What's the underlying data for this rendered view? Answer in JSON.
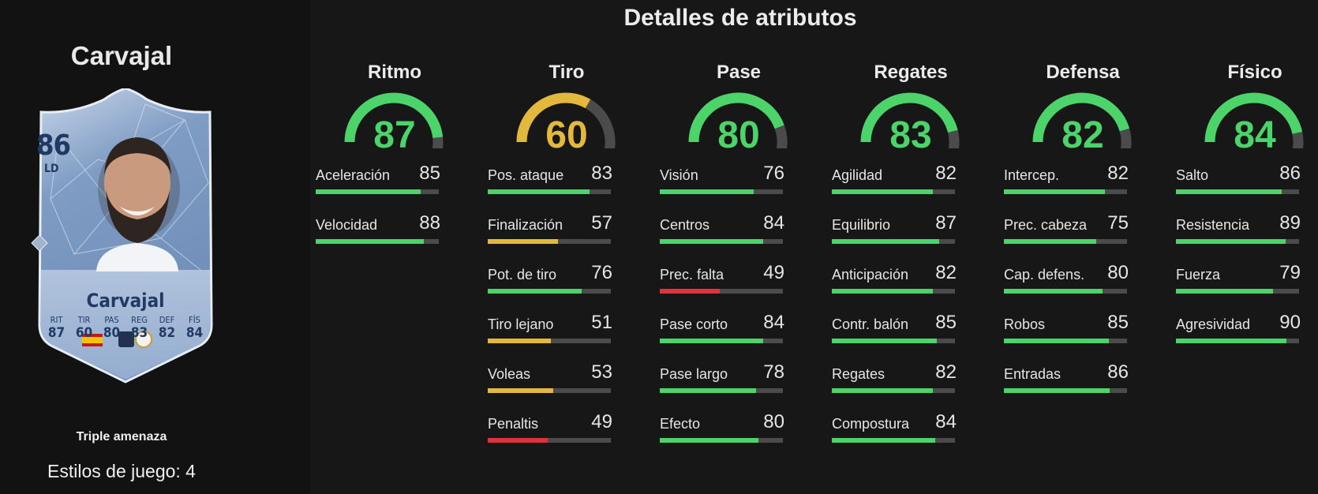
{
  "player": {
    "name": "Carvajal",
    "rating": "86",
    "position": "LD",
    "card_name": "Carvajal",
    "card_stats": [
      {
        "label": "RIT",
        "value": "87"
      },
      {
        "label": "TIR",
        "value": "60"
      },
      {
        "label": "PAS",
        "value": "80"
      },
      {
        "label": "REG",
        "value": "83"
      },
      {
        "label": "DEF",
        "value": "82"
      },
      {
        "label": "FÍS",
        "value": "84"
      }
    ],
    "playstyle": "Triple amenaza",
    "playstyles_count": "Estilos de juego: 4"
  },
  "section_title": "Detalles de atributos",
  "colors": {
    "green": "#4cd36a",
    "yellow": "#e2b93c",
    "red": "#e0313d",
    "track": "#4b4b4b"
  },
  "categories": [
    {
      "name": "Ritmo",
      "value": 87,
      "attributes": [
        {
          "name": "Aceleración",
          "value": 85
        },
        {
          "name": "Velocidad",
          "value": 88
        }
      ]
    },
    {
      "name": "Tiro",
      "value": 60,
      "attributes": [
        {
          "name": "Pos. ataque",
          "value": 83
        },
        {
          "name": "Finalización",
          "value": 57
        },
        {
          "name": "Pot. de tiro",
          "value": 76
        },
        {
          "name": "Tiro lejano",
          "value": 51
        },
        {
          "name": "Voleas",
          "value": 53
        },
        {
          "name": "Penaltis",
          "value": 49
        }
      ]
    },
    {
      "name": "Pase",
      "value": 80,
      "attributes": [
        {
          "name": "Visión",
          "value": 76
        },
        {
          "name": "Centros",
          "value": 84
        },
        {
          "name": "Prec. falta",
          "value": 49
        },
        {
          "name": "Pase corto",
          "value": 84
        },
        {
          "name": "Pase largo",
          "value": 78
        },
        {
          "name": "Efecto",
          "value": 80
        }
      ]
    },
    {
      "name": "Regates",
      "value": 83,
      "attributes": [
        {
          "name": "Agilidad",
          "value": 82
        },
        {
          "name": "Equilibrio",
          "value": 87
        },
        {
          "name": "Anticipación",
          "value": 82
        },
        {
          "name": "Contr. balón",
          "value": 85
        },
        {
          "name": "Regates",
          "value": 82
        },
        {
          "name": "Compostura",
          "value": 84
        }
      ]
    },
    {
      "name": "Defensa",
      "value": 82,
      "attributes": [
        {
          "name": "Intercep.",
          "value": 82
        },
        {
          "name": "Prec. cabeza",
          "value": 75
        },
        {
          "name": "Cap. defens.",
          "value": 80
        },
        {
          "name": "Robos",
          "value": 85
        },
        {
          "name": "Entradas",
          "value": 86
        }
      ]
    },
    {
      "name": "Físico",
      "value": 84,
      "attributes": [
        {
          "name": "Salto",
          "value": 86
        },
        {
          "name": "Resistencia",
          "value": 89
        },
        {
          "name": "Fuerza",
          "value": 79
        },
        {
          "name": "Agresividad",
          "value": 90
        }
      ]
    }
  ]
}
